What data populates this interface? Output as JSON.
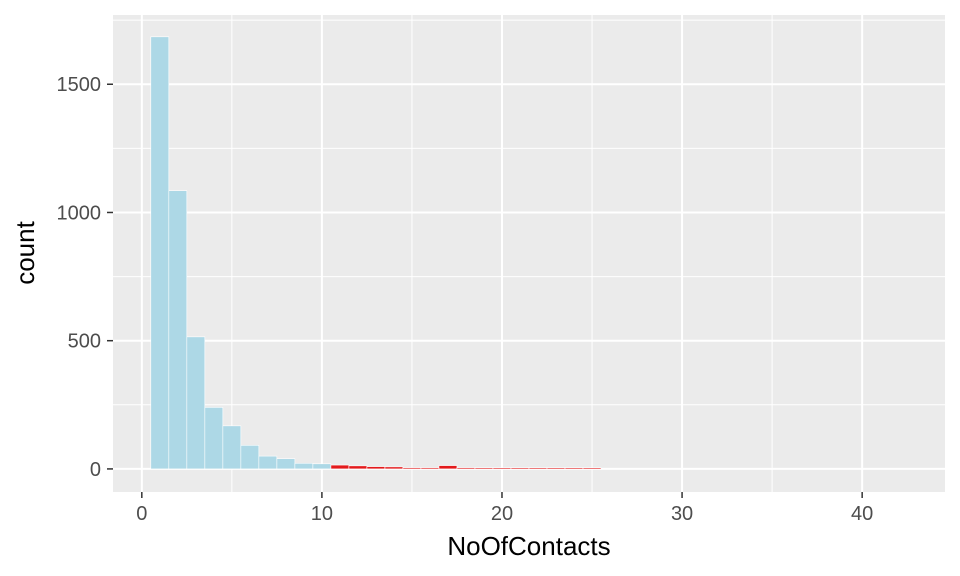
{
  "chart_data": {
    "type": "bar",
    "xlabel": "NoOfContacts",
    "ylabel": "count",
    "xlim": [
      -1.6,
      44.6
    ],
    "ylim": [
      -90,
      1770
    ],
    "x_ticks": [
      0,
      10,
      20,
      30,
      40
    ],
    "y_ticks": [
      0,
      500,
      1000,
      1500
    ],
    "grid": true,
    "legend": "none",
    "bin_width": 1,
    "colors": {
      "normal": "#add8e6",
      "highlight": "#e31a1c",
      "panel": "#ebebeb",
      "grid": "#ffffff"
    },
    "bins": [
      {
        "x": 1,
        "count": 1685,
        "highlight": false
      },
      {
        "x": 2,
        "count": 1085,
        "highlight": false
      },
      {
        "x": 3,
        "count": 515,
        "highlight": false
      },
      {
        "x": 4,
        "count": 240,
        "highlight": false
      },
      {
        "x": 5,
        "count": 168,
        "highlight": false
      },
      {
        "x": 6,
        "count": 92,
        "highlight": false
      },
      {
        "x": 7,
        "count": 50,
        "highlight": false
      },
      {
        "x": 8,
        "count": 40,
        "highlight": false
      },
      {
        "x": 9,
        "count": 22,
        "highlight": false
      },
      {
        "x": 10,
        "count": 20,
        "highlight": false
      },
      {
        "x": 11,
        "count": 15,
        "highlight": true
      },
      {
        "x": 12,
        "count": 12,
        "highlight": true
      },
      {
        "x": 13,
        "count": 9,
        "highlight": true
      },
      {
        "x": 14,
        "count": 8,
        "highlight": true
      },
      {
        "x": 15,
        "count": 5,
        "highlight": true
      },
      {
        "x": 16,
        "count": 5,
        "highlight": true
      },
      {
        "x": 17,
        "count": 13,
        "highlight": true
      },
      {
        "x": 18,
        "count": 5,
        "highlight": true
      },
      {
        "x": 19,
        "count": 4,
        "highlight": true
      },
      {
        "x": 20,
        "count": 4,
        "highlight": true
      },
      {
        "x": 21,
        "count": 3,
        "highlight": true
      },
      {
        "x": 22,
        "count": 3,
        "highlight": true
      },
      {
        "x": 23,
        "count": 3,
        "highlight": true
      },
      {
        "x": 24,
        "count": 3,
        "highlight": true
      },
      {
        "x": 25,
        "count": 2,
        "highlight": true
      }
    ]
  }
}
